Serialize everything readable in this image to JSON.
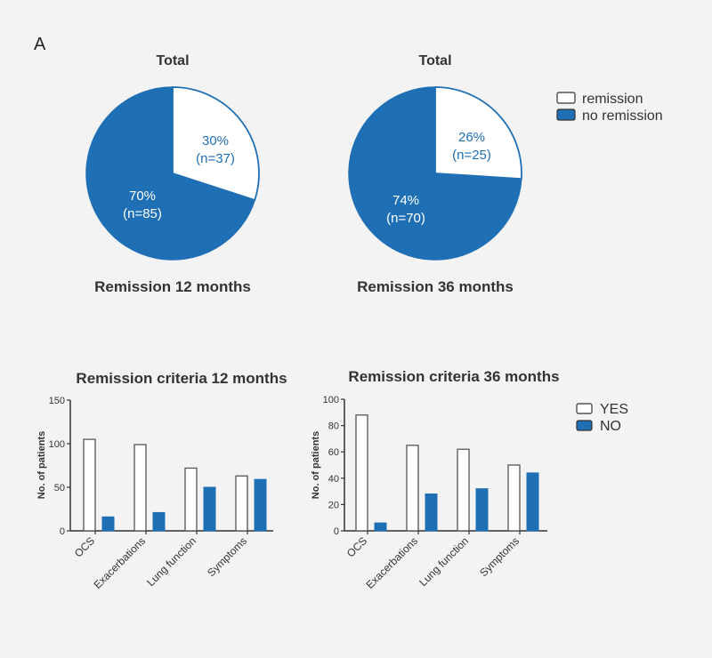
{
  "panel_label": "A",
  "colors": {
    "yes_fill": "#ffffff",
    "no_fill": "#1f6fb5",
    "stroke": "#1f6fb5",
    "bar_yes_stroke": "#555555",
    "axis": "#333333"
  },
  "chart_data": [
    {
      "type": "pie",
      "title": "Total",
      "subtitle": "Remission 12 months",
      "slices": [
        {
          "name": "remission",
          "percent": 30,
          "label_pct": "30%",
          "label_n": "(n=37)"
        },
        {
          "name": "no remission",
          "percent": 70,
          "label_pct": "70%",
          "label_n": "(n=85)"
        }
      ]
    },
    {
      "type": "pie",
      "title": "Total",
      "subtitle": "Remission 36 months",
      "slices": [
        {
          "name": "remission",
          "percent": 26,
          "label_pct": "26%",
          "label_n": "(n=25)"
        },
        {
          "name": "no remission",
          "percent": 74,
          "label_pct": "74%",
          "label_n": "(n=70)"
        }
      ],
      "legend": [
        "remission",
        "no remission"
      ],
      "legend_position": "right"
    },
    {
      "type": "bar",
      "title": "Remission criteria 12 months",
      "ylabel": "No. of patients",
      "ylim": [
        0,
        150
      ],
      "yticks": [
        0,
        50,
        100,
        150
      ],
      "categories": [
        "OCS",
        "Exacerbations",
        "Lung function",
        "Symptoms"
      ],
      "series": [
        {
          "name": "YES",
          "values": [
            105,
            99,
            72,
            63
          ]
        },
        {
          "name": "NO",
          "values": [
            16,
            21,
            50,
            59
          ]
        }
      ]
    },
    {
      "type": "bar",
      "title": "Remission criteria 36 months",
      "ylabel": "No. of patients",
      "ylim": [
        0,
        100
      ],
      "yticks": [
        0,
        20,
        40,
        60,
        80,
        100
      ],
      "categories": [
        "OCS",
        "Exacerbations",
        "Lung function",
        "Symptoms"
      ],
      "series": [
        {
          "name": "YES",
          "values": [
            88,
            65,
            62,
            50
          ]
        },
        {
          "name": "NO",
          "values": [
            6,
            28,
            32,
            44
          ]
        }
      ],
      "legend": [
        "YES",
        "NO"
      ],
      "legend_position": "right"
    }
  ]
}
